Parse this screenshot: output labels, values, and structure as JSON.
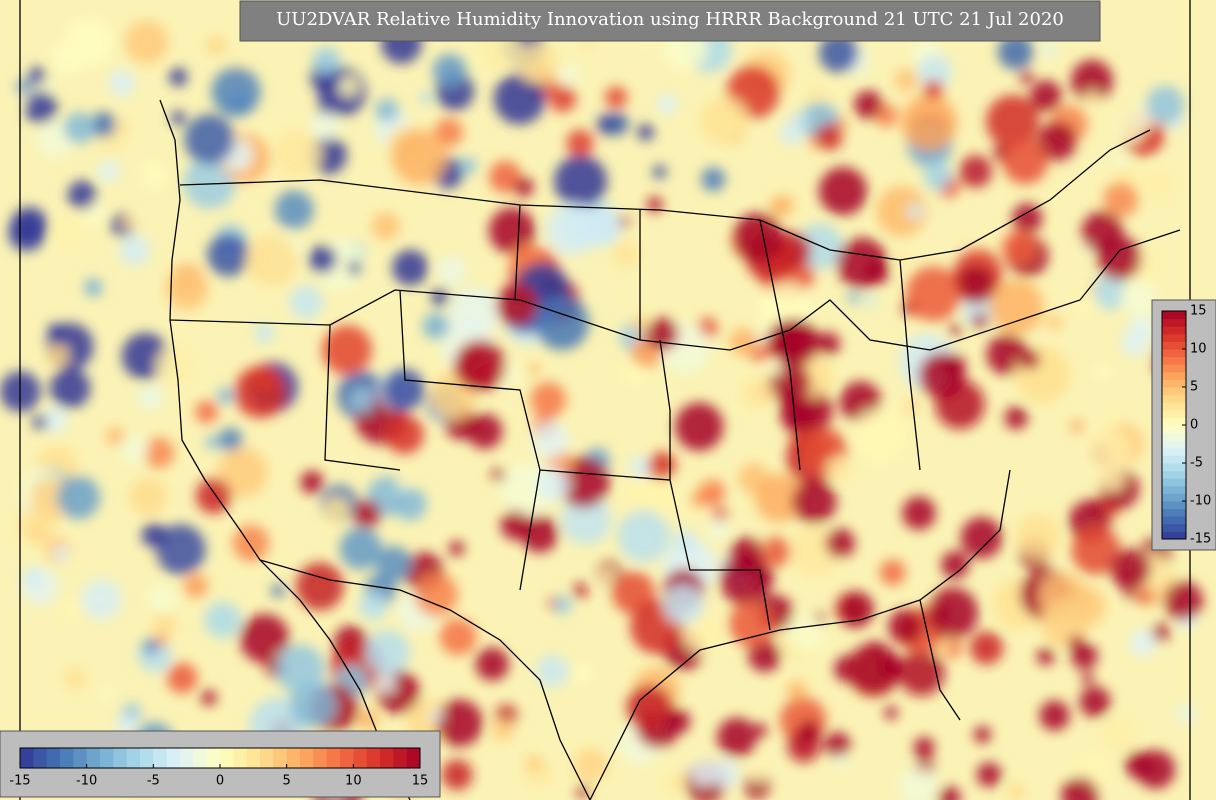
{
  "title": "UU2DVAR Relative Humidity Innovation using HRRR Background 21 UTC 21 Jul 2020",
  "colormap": [
    "#313695",
    "#4575b4",
    "#74add1",
    "#abd9e9",
    "#e0f3f8",
    "#ffffbf",
    "#fee090",
    "#fdae61",
    "#f46d43",
    "#d73027",
    "#a50026"
  ],
  "colorbars": [
    {
      "orientation": "vertical",
      "lim": [
        -15,
        15
      ],
      "ticks": [
        -15,
        -10,
        -5,
        0,
        5,
        10,
        15
      ]
    },
    {
      "orientation": "horizontal",
      "lim": [
        -15,
        15
      ],
      "ticks": [
        -15,
        -10,
        -5,
        0,
        5,
        10,
        15
      ]
    }
  ]
}
